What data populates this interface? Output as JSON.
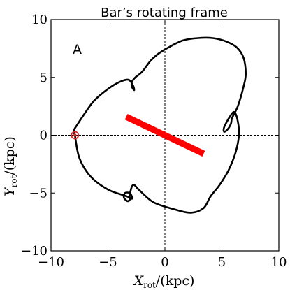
{
  "chart_data": {
    "type": "line",
    "title": "Bar’s rotating frame",
    "panel_label": "A",
    "xlabel": {
      "main": "X",
      "sub": "rot",
      "unit": "/(kpc)"
    },
    "ylabel": {
      "main": "Y",
      "sub": "rot",
      "unit": "/(kpc)"
    },
    "xlim": [
      -10,
      10
    ],
    "ylim": [
      -10,
      10
    ],
    "xticks": [
      -10,
      -5,
      0,
      5,
      10
    ],
    "yticks": [
      -10,
      -5,
      0,
      5,
      10
    ],
    "xtick_labels": [
      "−10",
      "−5",
      "0",
      "5",
      "10"
    ],
    "ytick_labels": [
      "−10",
      "−5",
      "0",
      "5",
      "10"
    ],
    "reference_lines": {
      "x": 0,
      "y": 0,
      "style": "dashed"
    },
    "bar": {
      "x": [
        -3.4,
        3.4
      ],
      "y": [
        1.6,
        -1.6
      ],
      "color": "#ff0000"
    },
    "start_point": {
      "x": -7.9,
      "y": 0.0,
      "color": "#d62728"
    },
    "orbit": {
      "color": "#000000",
      "x": [
        -7.9,
        -7.5,
        -6.5,
        -5.0,
        -3.6,
        -3.1,
        -3.1,
        -3.3,
        -3.6,
        -3.5,
        -3.1,
        -2.9,
        -2.9,
        -3.1,
        -2.8,
        -2.2,
        -1.0,
        0.8,
        2.3,
        3.4,
        4.0,
        4.8,
        5.6,
        6.2,
        6.5,
        6.4,
        6.1,
        5.7,
        5.2,
        5.2,
        5.5,
        5.8,
        5.9,
        6.4,
        6.9,
        7.1,
        6.9,
        6.3,
        5.4,
        4.2,
        2.9,
        1.6,
        0.5,
        -0.5,
        -1.2,
        -1.6,
        -1.9,
        -2.2,
        -2.6,
        -2.9,
        -2.9,
        -2.7,
        -2.8,
        -3.2,
        -4.0,
        -5.0,
        -6.2,
        -7.1,
        -7.7,
        -8.0,
        -7.9
      ],
      "y": [
        0.0,
        -2.0,
        -3.6,
        -4.7,
        -5.2,
        -5.4,
        -5.6,
        -5.7,
        -5.4,
        -5.0,
        -5.0,
        -5.3,
        -5.5,
        -5.3,
        -4.3,
        -4.8,
        -5.8,
        -6.4,
        -6.7,
        -6.3,
        -5.3,
        -4.3,
        -3.0,
        -1.5,
        0.0,
        1.2,
        2.0,
        1.6,
        0.7,
        0.3,
        0.5,
        1.0,
        1.5,
        2.5,
        4.2,
        5.3,
        6.7,
        7.6,
        8.1,
        8.4,
        8.4,
        8.2,
        7.7,
        7.1,
        6.5,
        6.0,
        5.6,
        5.3,
        5.0,
        4.6,
        4.2,
        3.9,
        4.3,
        4.8,
        4.6,
        4.0,
        3.0,
        1.8,
        0.9,
        0.4,
        0.0
      ]
    }
  }
}
